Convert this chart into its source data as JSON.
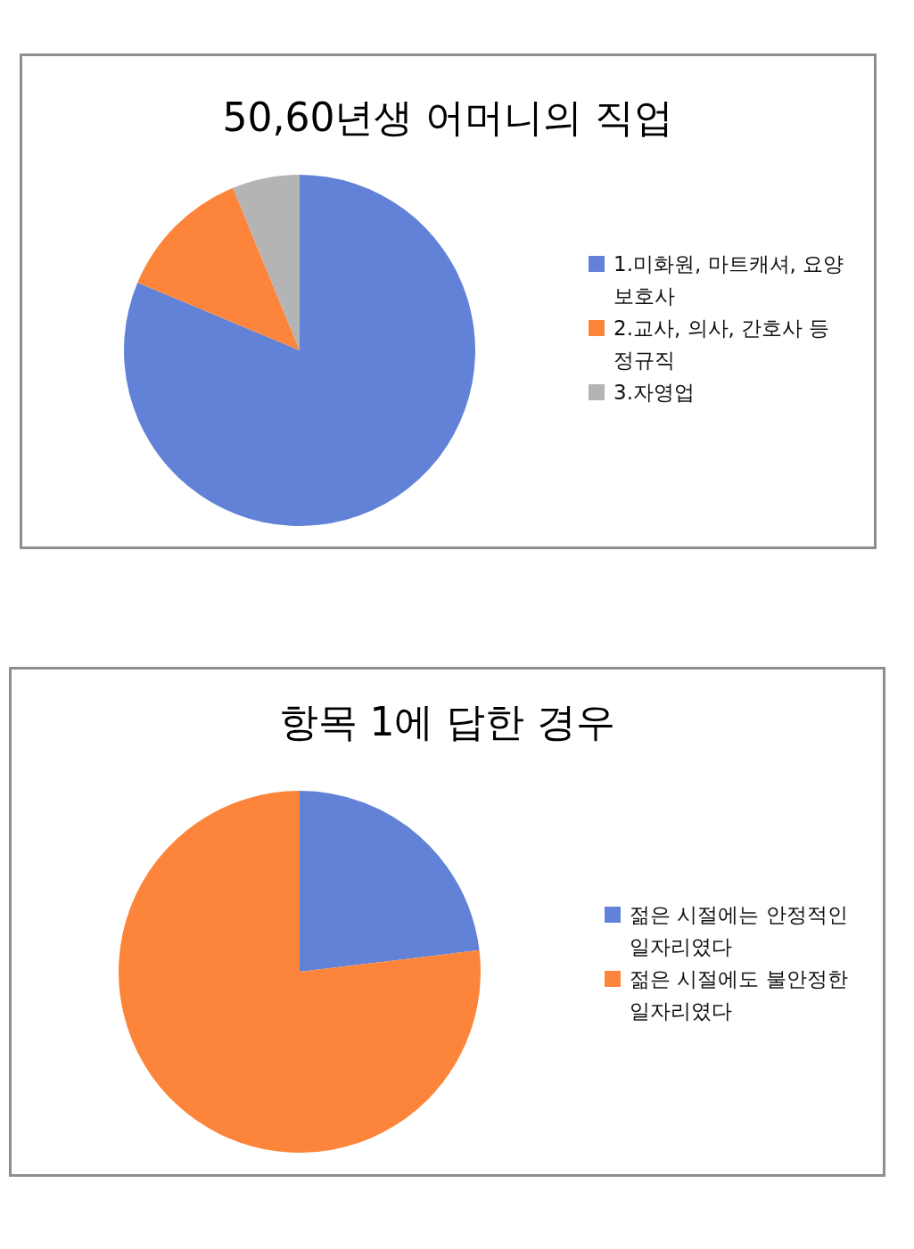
{
  "chart_data": [
    {
      "type": "pie",
      "title": "50,60년생 어머니의 직업",
      "categories": [
        "1.미화원, 마트캐셔, 요양보호사",
        "2.교사, 의사, 간호사 등 정규직",
        "3.자영업"
      ],
      "values": [
        81.3,
        12.5,
        6.2
      ],
      "colors": [
        "#6182d6",
        "#fd853b",
        "#b4b4b4"
      ],
      "legend": "right"
    },
    {
      "type": "pie",
      "title": "항목 1에 답한 경우",
      "categories": [
        "젊은 시절에는 안정적인 일자리였다",
        "젊은 시절에도 불안정한 일자리였다"
      ],
      "values": [
        23.1,
        76.9
      ],
      "colors": [
        "#6182d6",
        "#fd853b"
      ],
      "legend": "right"
    }
  ]
}
